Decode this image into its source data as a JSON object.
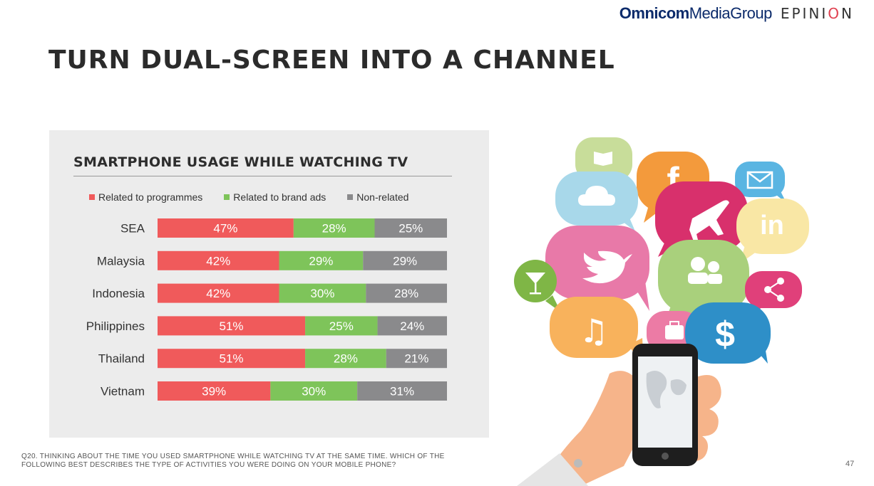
{
  "header": {
    "logo_omnicom_bold": "Omnicom",
    "logo_omnicom_regular": "MediaGroup",
    "logo_epinion_pre": "EPINI",
    "logo_epinion_o": "O",
    "logo_epinion_post": "N"
  },
  "slide": {
    "title": "TURN DUAL-SCREEN INTO A CHANNEL",
    "footnote": "Q20. THINKING ABOUT THE TIME YOU USED SMARTPHONE WHILE WATCHING TV AT THE SAME TIME. WHICH OF THE FOLLOWING BEST DESCRIBES THE TYPE OF ACTIVITIES YOU WERE DOING ON YOUR MOBILE PHONE?",
    "page_number": "47"
  },
  "colors": {
    "programmes": "#f05a5b",
    "brand_ads": "#7ec45a",
    "non_related": "#8a8a8c"
  },
  "chart_data": {
    "type": "bar",
    "orientation": "horizontal",
    "stacked": true,
    "percent_stacked": true,
    "title": "SMARTPHONE USAGE WHILE WATCHING TV",
    "xlabel": "",
    "ylabel": "",
    "xlim": [
      0,
      100
    ],
    "legend_position": "top",
    "categories": [
      "SEA",
      "Malaysia",
      "Indonesia",
      "Philippines",
      "Thailand",
      "Vietnam"
    ],
    "series": [
      {
        "name": "Related to programmes",
        "values": [
          47,
          42,
          42,
          51,
          51,
          39
        ]
      },
      {
        "name": "Related to brand ads",
        "values": [
          28,
          29,
          30,
          25,
          28,
          30
        ]
      },
      {
        "name": "Non-related",
        "values": [
          25,
          29,
          28,
          24,
          21,
          31
        ]
      }
    ],
    "value_suffix": "%"
  },
  "illustration": {
    "icons": [
      "book-icon",
      "facebook-icon",
      "email-icon",
      "cloud-icon",
      "airplane-icon",
      "linkedin-icon",
      "twitter-icon",
      "users-icon",
      "cocktail-icon",
      "share-icon",
      "music-icon",
      "briefcase-icon",
      "dollar-icon",
      "smartphone-icon",
      "hand-icon"
    ],
    "facebook_glyph": "f",
    "linkedin_glyph": "in",
    "dollar_glyph": "$",
    "music_glyph": "♫"
  }
}
